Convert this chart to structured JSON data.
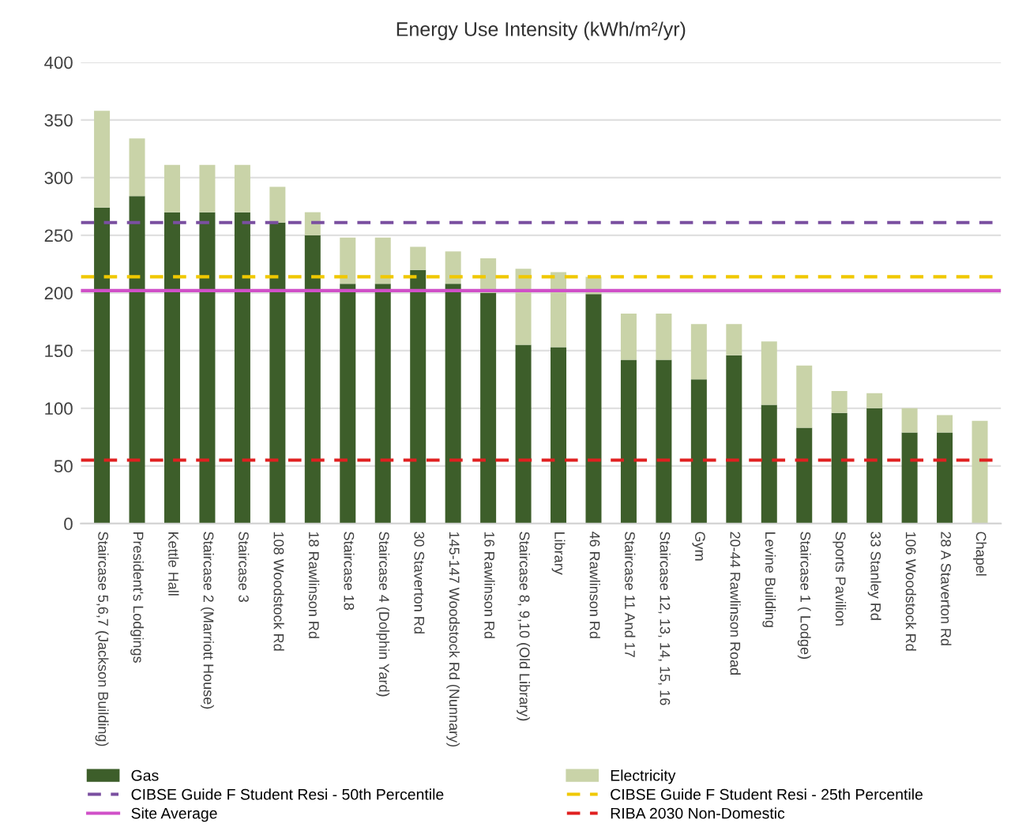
{
  "chart_data": {
    "type": "bar",
    "title": "Energy Use Intensity (kWh/m²/yr)",
    "stacked": true,
    "categories": [
      "Staircase 5,6,7 (Jackson Building)",
      "President's Lodgings",
      "Kettle Hall",
      "Staircase 2 (Marriott House)",
      "Staircase 3",
      "108 Woodstock Rd",
      "18 Rawlinson Rd",
      "Staircase 18",
      "Staircase 4 (Dolphin Yard)",
      "30 Staverton Rd",
      "145-147 Woodstock Rd (Nunnary)",
      "16 Rawlinson Rd",
      "Staircase 8, 9,10 (Old Library)",
      "Library",
      "46 Rawlinson Rd",
      "Staircase 11 And 17",
      "Staircase 12, 13, 14, 15, 16",
      "Gym",
      "20-44 Rawlinson Road",
      "Levine Building",
      "Staircase 1 ( Lodge)",
      "Sports Pavilion",
      "33 Stanley Rd",
      "106 Woodstock Rd",
      "28 A Staverton Rd",
      "Chapel"
    ],
    "series": [
      {
        "name": "Gas",
        "color": "#3d5e2a",
        "values": [
          274,
          284,
          270,
          270,
          270,
          261,
          250,
          208,
          208,
          220,
          208,
          200,
          155,
          153,
          199,
          142,
          142,
          125,
          146,
          103,
          83,
          96,
          100,
          79,
          79,
          0
        ]
      },
      {
        "name": "Electricity",
        "color": "#c9d3a8",
        "values": [
          84,
          50,
          41,
          41,
          41,
          31,
          20,
          40,
          40,
          20,
          28,
          30,
          66,
          65,
          15,
          40,
          40,
          48,
          27,
          55,
          54,
          19,
          13,
          21,
          15,
          89
        ]
      }
    ],
    "ref_lines": [
      {
        "axis": "y",
        "value": 261,
        "label": "CIBSE Guide F Student Resi - 50th Percentile",
        "color": "#7a4fa0",
        "line_style": "dashed"
      },
      {
        "axis": "y",
        "value": 214,
        "label": "CIBSE Guide F Student Resi - 25th Percentile",
        "color": "#f0c800",
        "line_style": "dashed"
      },
      {
        "axis": "y",
        "value": 202,
        "label": "Site Average",
        "color": "#d050c8",
        "line_style": "solid"
      },
      {
        "axis": "y",
        "value": 55,
        "label": "RIBA 2030 Non-Domestic",
        "color": "#e02020",
        "line_style": "dashed"
      }
    ],
    "ylim": [
      0,
      400
    ],
    "yticks": [
      0,
      50,
      100,
      150,
      200,
      250,
      300,
      350,
      400
    ],
    "grid": "y",
    "legend": "bottom"
  }
}
